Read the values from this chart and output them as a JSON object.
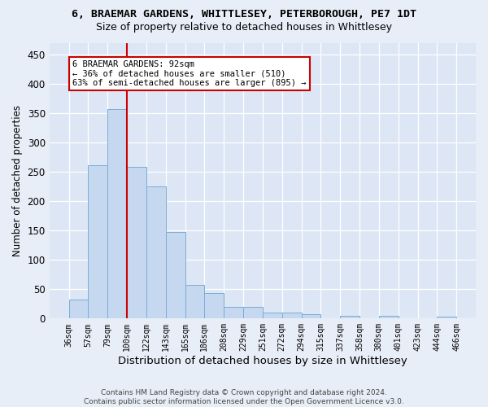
{
  "title": "6, BRAEMAR GARDENS, WHITTLESEY, PETERBOROUGH, PE7 1DT",
  "subtitle": "Size of property relative to detached houses in Whittlesey",
  "xlabel": "Distribution of detached houses by size in Whittlesey",
  "ylabel": "Number of detached properties",
  "bar_values": [
    32,
    261,
    357,
    258,
    225,
    148,
    57,
    43,
    20,
    20,
    10,
    10,
    8,
    0,
    5,
    0,
    4,
    0,
    0,
    3
  ],
  "bin_labels": [
    "36sqm",
    "57sqm",
    "79sqm",
    "100sqm",
    "122sqm",
    "143sqm",
    "165sqm",
    "186sqm",
    "208sqm",
    "229sqm",
    "251sqm",
    "272sqm",
    "294sqm",
    "315sqm",
    "337sqm",
    "358sqm",
    "380sqm",
    "401sqm",
    "423sqm",
    "444sqm",
    "466sqm"
  ],
  "bar_color": "#c5d8f0",
  "bar_edge_color": "#7aadd4",
  "vline_color": "#cc0000",
  "vline_x_data": 2.5,
  "annotation_line1": "6 BRAEMAR GARDENS: 92sqm",
  "annotation_line2": "← 36% of detached houses are smaller (510)",
  "annotation_line3": "63% of semi-detached houses are larger (895) →",
  "annotation_box_facecolor": "#ffffff",
  "annotation_box_edgecolor": "#cc0000",
  "ylim": [
    0,
    470
  ],
  "yticks": [
    0,
    50,
    100,
    150,
    200,
    250,
    300,
    350,
    400,
    450
  ],
  "fig_bg_color": "#e8eef7",
  "plot_bg_color": "#dce6f5",
  "footer_line1": "Contains HM Land Registry data © Crown copyright and database right 2024.",
  "footer_line2": "Contains public sector information licensed under the Open Government Licence v3.0.",
  "title_fontsize": 9.5,
  "subtitle_fontsize": 9,
  "ylabel_fontsize": 8.5,
  "xlabel_fontsize": 9.5,
  "ytick_fontsize": 8.5,
  "xtick_fontsize": 7,
  "annotation_fontsize": 7.5,
  "footer_fontsize": 6.5
}
